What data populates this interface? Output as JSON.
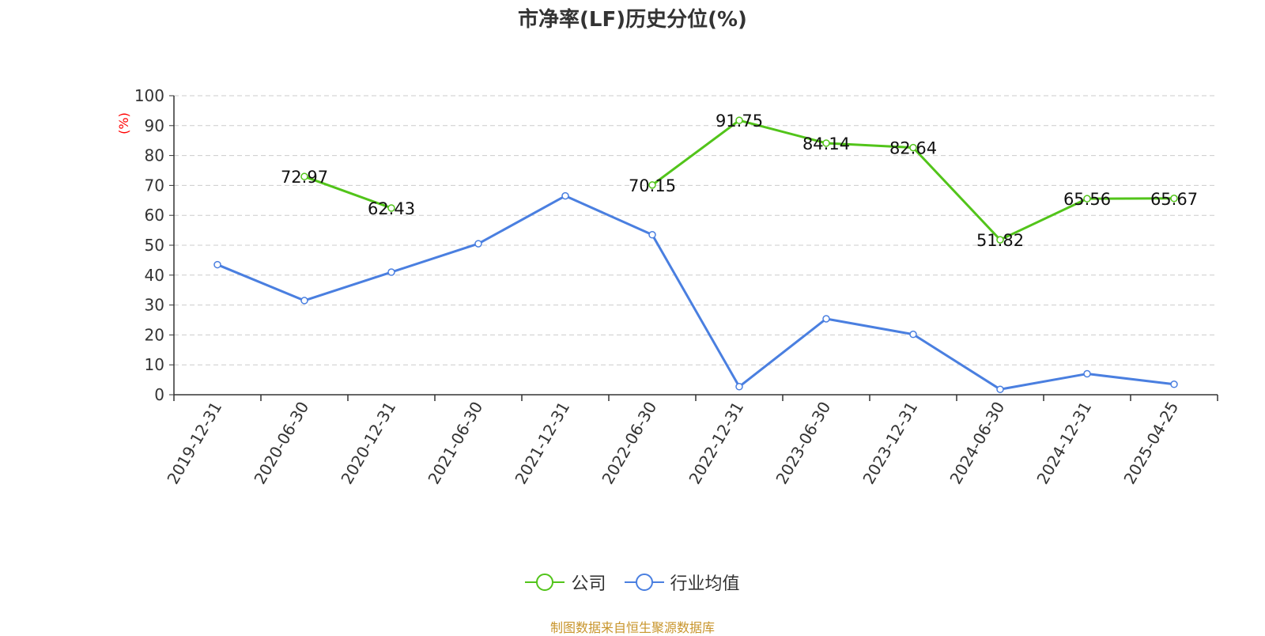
{
  "chart_data": {
    "type": "line",
    "title": "市净率(LF)历史分位(%)",
    "ylabel": "(%)",
    "ylim": [
      0,
      100
    ],
    "yticks": [
      0,
      10,
      20,
      30,
      40,
      50,
      60,
      70,
      80,
      90,
      100
    ],
    "grid": true,
    "legend_position": "bottom",
    "categories": [
      "2019-12-31",
      "2020-06-30",
      "2020-12-31",
      "2021-06-30",
      "2021-12-31",
      "2022-06-30",
      "2022-12-31",
      "2023-06-30",
      "2023-12-31",
      "2024-06-30",
      "2024-12-31",
      "2025-04-25"
    ],
    "series": [
      {
        "name": "公司",
        "color": "#52c41a",
        "values": [
          null,
          72.97,
          62.43,
          null,
          null,
          70.15,
          91.75,
          84.14,
          82.64,
          51.82,
          65.56,
          65.67
        ],
        "labels": [
          "",
          "72.97",
          "62.43",
          "",
          "",
          "70.15",
          "91.75",
          "84.14",
          "82.64",
          "51.82",
          "65.56",
          "65.67"
        ]
      },
      {
        "name": "行业均值",
        "color": "#4a7fe0",
        "values": [
          43.5,
          31.5,
          41.0,
          50.5,
          66.5,
          53.5,
          2.7,
          25.4,
          20.2,
          1.8,
          7.0,
          3.5
        ]
      }
    ]
  },
  "source_note": "制图数据来自恒生聚源数据库"
}
